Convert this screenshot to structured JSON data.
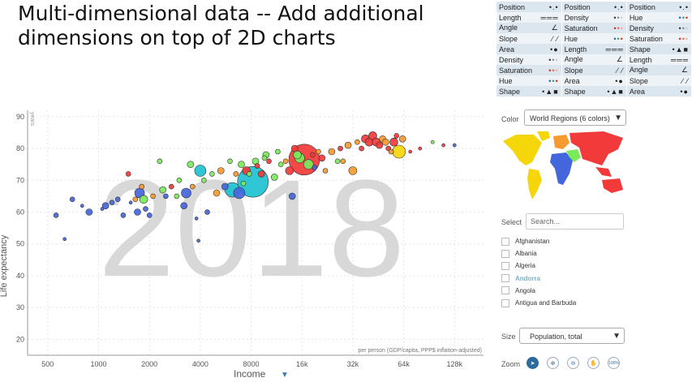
{
  "slide": {
    "title_line1": "Multi-dimensional data -- Add additional",
    "title_line2": "dimensions on top of 2D charts"
  },
  "encoding_table": {
    "rows": [
      [
        {
          "label": "Position",
          "glyph": "•.•"
        },
        {
          "label": "Position",
          "glyph": "•.•"
        },
        {
          "label": "Position",
          "glyph": "•.•"
        }
      ],
      [
        {
          "label": "Length",
          "glyph": "═══"
        },
        {
          "label": "Density",
          "glyph": "•••",
          "colors": [
            "#333",
            "#888",
            "#ccc"
          ]
        },
        {
          "label": "Hue",
          "glyph": "•••",
          "colors": [
            "#2255cc",
            "#22aa44",
            "#dd2222"
          ]
        }
      ],
      [
        {
          "label": "Angle",
          "glyph": "∠"
        },
        {
          "label": "Saturation",
          "glyph": "•••",
          "colors": [
            "#dd2222",
            "#ee6655",
            "#f4aaaa"
          ]
        },
        {
          "label": "Density",
          "glyph": "•••",
          "colors": [
            "#333",
            "#888",
            "#ccc"
          ]
        }
      ],
      [
        {
          "label": "Slope",
          "glyph": "⁄ ⁄"
        },
        {
          "label": "Hue",
          "glyph": "•••",
          "colors": [
            "#2255cc",
            "#22aa44",
            "#dd2222"
          ]
        },
        {
          "label": "Saturation",
          "glyph": "•••",
          "colors": [
            "#dd2222",
            "#ee6655",
            "#f4aaaa"
          ]
        }
      ],
      [
        {
          "label": "Area",
          "glyph": "•●"
        },
        {
          "label": "Length",
          "glyph": "═══"
        },
        {
          "label": "Shape",
          "glyph": "•▲■"
        }
      ],
      [
        {
          "label": "Density",
          "glyph": "•••",
          "colors": [
            "#333",
            "#888",
            "#ccc"
          ]
        },
        {
          "label": "Angle",
          "glyph": "∠"
        },
        {
          "label": "Length",
          "glyph": "═══"
        }
      ],
      [
        {
          "label": "Saturation",
          "glyph": "•••",
          "colors": [
            "#dd2222",
            "#ee6655",
            "#f4aaaa"
          ]
        },
        {
          "label": "Slope",
          "glyph": "⁄ ⁄"
        },
        {
          "label": "Angle",
          "glyph": "∠"
        }
      ],
      [
        {
          "label": "Hue",
          "glyph": "•••",
          "colors": [
            "#2255cc",
            "#22aa44",
            "#dd2222"
          ]
        },
        {
          "label": "Area",
          "glyph": "•●"
        },
        {
          "label": "Slope",
          "glyph": "⁄ ⁄"
        }
      ],
      [
        {
          "label": "Shape",
          "glyph": "•▲■"
        },
        {
          "label": "Shape",
          "glyph": "•▲■"
        },
        {
          "label": "Area",
          "glyph": "•●"
        }
      ]
    ]
  },
  "controls": {
    "color_label": "Color",
    "color_value": "World Regions (6 colors)",
    "select_label": "Select",
    "search_placeholder": "Search...",
    "countries": [
      "Afghanistan",
      "Albania",
      "Algeria",
      "Andorra",
      "Angola",
      "Antigua and Barbuda"
    ],
    "size_label": "Size",
    "size_value": "Population, total",
    "zoom_label": "Zoom",
    "zoom_100": "100%"
  },
  "region_colors": {
    "africa": "#1fc1d1",
    "americas": "#7bea5a",
    "asia": "#f23a3a",
    "europe": "#f5d60a",
    "blue": "#4466dd",
    "orange": "#f79a2f"
  },
  "chart_data": {
    "type": "scatter",
    "year_watermark": "2018",
    "xlabel": "Income",
    "x_unit_note": "per person (GDP/capita, PPP$ inflation-adjusted)",
    "ylabel": "Life expectancy",
    "y_unit": "years",
    "x_scale": "log",
    "xlim": [
      380,
      190000
    ],
    "ylim": [
      15,
      92
    ],
    "x_ticks": [
      500,
      1000,
      2000,
      4000,
      8000,
      16000,
      32000,
      64000,
      128000
    ],
    "x_tick_labels": [
      "500",
      "1000",
      "2000",
      "4000",
      "8000",
      "16k",
      "32k",
      "64k",
      "128k"
    ],
    "y_ticks": [
      20,
      30,
      40,
      50,
      60,
      70,
      80,
      90
    ],
    "points": [
      {
        "x": 560,
        "y": 59,
        "r": 3,
        "c": "blue"
      },
      {
        "x": 630,
        "y": 51.5,
        "r": 2,
        "c": "blue"
      },
      {
        "x": 700,
        "y": 64,
        "r": 3,
        "c": "blue"
      },
      {
        "x": 800,
        "y": 62,
        "r": 2,
        "c": "blue"
      },
      {
        "x": 880,
        "y": 60,
        "r": 4,
        "c": "blue"
      },
      {
        "x": 1050,
        "y": 61,
        "r": 2,
        "c": "blue"
      },
      {
        "x": 1100,
        "y": 62,
        "r": 4,
        "c": "blue"
      },
      {
        "x": 1200,
        "y": 63,
        "r": 3,
        "c": "blue"
      },
      {
        "x": 1300,
        "y": 64,
        "r": 3,
        "c": "blue"
      },
      {
        "x": 1400,
        "y": 59,
        "r": 3,
        "c": "blue"
      },
      {
        "x": 1500,
        "y": 72,
        "r": 3,
        "c": "asia"
      },
      {
        "x": 1550,
        "y": 63,
        "r": 2,
        "c": "blue"
      },
      {
        "x": 1650,
        "y": 64,
        "r": 3,
        "c": "orange"
      },
      {
        "x": 1700,
        "y": 60,
        "r": 4,
        "c": "blue"
      },
      {
        "x": 1750,
        "y": 66,
        "r": 6,
        "c": "blue"
      },
      {
        "x": 1800,
        "y": 68,
        "r": 3,
        "c": "orange"
      },
      {
        "x": 1850,
        "y": 64,
        "r": 5,
        "c": "americas"
      },
      {
        "x": 1900,
        "y": 61,
        "r": 3,
        "c": "blue"
      },
      {
        "x": 2000,
        "y": 59,
        "r": 3,
        "c": "blue"
      },
      {
        "x": 2100,
        "y": 65,
        "r": 3,
        "c": "orange"
      },
      {
        "x": 2300,
        "y": 76,
        "r": 3,
        "c": "americas"
      },
      {
        "x": 2400,
        "y": 67,
        "r": 4,
        "c": "americas"
      },
      {
        "x": 2500,
        "y": 65,
        "r": 3,
        "c": "blue"
      },
      {
        "x": 2700,
        "y": 68,
        "r": 3,
        "c": "asia"
      },
      {
        "x": 2900,
        "y": 65,
        "r": 3,
        "c": "americas"
      },
      {
        "x": 3000,
        "y": 70,
        "r": 3,
        "c": "americas"
      },
      {
        "x": 3200,
        "y": 62,
        "r": 4,
        "c": "blue"
      },
      {
        "x": 3300,
        "y": 66,
        "r": 6,
        "c": "blue"
      },
      {
        "x": 3500,
        "y": 75,
        "r": 4,
        "c": "americas"
      },
      {
        "x": 3600,
        "y": 68,
        "r": 3,
        "c": "orange"
      },
      {
        "x": 3800,
        "y": 58,
        "r": 2,
        "c": "blue"
      },
      {
        "x": 3900,
        "y": 51,
        "r": 2,
        "c": "blue"
      },
      {
        "x": 4000,
        "y": 73,
        "r": 7,
        "c": "africa"
      },
      {
        "x": 4200,
        "y": 70,
        "r": 3,
        "c": "americas"
      },
      {
        "x": 4400,
        "y": 60,
        "r": 3,
        "c": "blue"
      },
      {
        "x": 4700,
        "y": 72,
        "r": 3,
        "c": "americas"
      },
      {
        "x": 5000,
        "y": 66,
        "r": 4,
        "c": "orange"
      },
      {
        "x": 5300,
        "y": 73,
        "r": 4,
        "c": "orange"
      },
      {
        "x": 5600,
        "y": 68,
        "r": 4,
        "c": "blue"
      },
      {
        "x": 6000,
        "y": 76,
        "r": 3,
        "c": "americas"
      },
      {
        "x": 6200,
        "y": 67,
        "r": 9,
        "c": "africa"
      },
      {
        "x": 6500,
        "y": 72,
        "r": 3,
        "c": "orange"
      },
      {
        "x": 6800,
        "y": 66,
        "r": 7,
        "c": "blue"
      },
      {
        "x": 7000,
        "y": 75,
        "r": 4,
        "c": "americas"
      },
      {
        "x": 7200,
        "y": 69,
        "r": 3,
        "c": "americas"
      },
      {
        "x": 7500,
        "y": 73,
        "r": 5,
        "c": "asia"
      },
      {
        "x": 7800,
        "y": 72,
        "r": 3,
        "c": "americas"
      },
      {
        "x": 8200,
        "y": 69.5,
        "r": 19,
        "c": "africa"
      },
      {
        "x": 8500,
        "y": 76,
        "r": 4,
        "c": "americas"
      },
      {
        "x": 8700,
        "y": 74.5,
        "r": 3,
        "c": "asia"
      },
      {
        "x": 9200,
        "y": 72,
        "r": 4,
        "c": "asia"
      },
      {
        "x": 9600,
        "y": 77,
        "r": 3,
        "c": "americas"
      },
      {
        "x": 9800,
        "y": 78,
        "r": 4,
        "c": "americas"
      },
      {
        "x": 10200,
        "y": 76,
        "r": 3,
        "c": "asia"
      },
      {
        "x": 11000,
        "y": 71,
        "r": 4,
        "c": "americas"
      },
      {
        "x": 11500,
        "y": 79,
        "r": 3,
        "c": "americas"
      },
      {
        "x": 12000,
        "y": 75,
        "r": 3,
        "c": "americas"
      },
      {
        "x": 12800,
        "y": 76,
        "r": 3,
        "c": "orange"
      },
      {
        "x": 13500,
        "y": 73,
        "r": 5,
        "c": "asia"
      },
      {
        "x": 14000,
        "y": 65,
        "r": 4,
        "c": "blue"
      },
      {
        "x": 14500,
        "y": 80,
        "r": 4,
        "c": "asia"
      },
      {
        "x": 15000,
        "y": 78,
        "r": 5,
        "c": "americas"
      },
      {
        "x": 15500,
        "y": 77,
        "r": 6,
        "c": "americas"
      },
      {
        "x": 16500,
        "y": 76.5,
        "r": 19,
        "c": "asia"
      },
      {
        "x": 17500,
        "y": 75,
        "r": 6,
        "c": "americas"
      },
      {
        "x": 18500,
        "y": 78,
        "r": 3,
        "c": "asia"
      },
      {
        "x": 19000,
        "y": 74,
        "r": 3,
        "c": "blue"
      },
      {
        "x": 20000,
        "y": 79,
        "r": 3,
        "c": "orange"
      },
      {
        "x": 21000,
        "y": 77,
        "r": 4,
        "c": "asia"
      },
      {
        "x": 22000,
        "y": 73,
        "r": 3,
        "c": "orange"
      },
      {
        "x": 24000,
        "y": 79,
        "r": 4,
        "c": "orange"
      },
      {
        "x": 26000,
        "y": 76,
        "r": 3,
        "c": "americas"
      },
      {
        "x": 27000,
        "y": 80,
        "r": 3,
        "c": "asia"
      },
      {
        "x": 28000,
        "y": 76,
        "r": 3,
        "c": "orange"
      },
      {
        "x": 30000,
        "y": 81,
        "r": 4,
        "c": "orange"
      },
      {
        "x": 32000,
        "y": 73,
        "r": 5,
        "c": "orange"
      },
      {
        "x": 34000,
        "y": 82,
        "r": 3,
        "c": "orange"
      },
      {
        "x": 36000,
        "y": 80,
        "r": 3,
        "c": "asia"
      },
      {
        "x": 38000,
        "y": 83,
        "r": 5,
        "c": "asia"
      },
      {
        "x": 40000,
        "y": 82,
        "r": 5,
        "c": "asia"
      },
      {
        "x": 42000,
        "y": 84,
        "r": 5,
        "c": "asia"
      },
      {
        "x": 44000,
        "y": 82,
        "r": 5,
        "c": "asia"
      },
      {
        "x": 46000,
        "y": 81,
        "r": 4,
        "c": "asia"
      },
      {
        "x": 48000,
        "y": 83,
        "r": 4,
        "c": "orange"
      },
      {
        "x": 50000,
        "y": 82,
        "r": 4,
        "c": "orange"
      },
      {
        "x": 52000,
        "y": 80,
        "r": 3,
        "c": "asia"
      },
      {
        "x": 54000,
        "y": 79,
        "r": 3,
        "c": "orange"
      },
      {
        "x": 56000,
        "y": 82,
        "r": 5,
        "c": "asia"
      },
      {
        "x": 58000,
        "y": 84,
        "r": 3,
        "c": "asia"
      },
      {
        "x": 60000,
        "y": 79,
        "r": 8,
        "c": "europe"
      },
      {
        "x": 63000,
        "y": 83,
        "r": 4,
        "c": "orange"
      },
      {
        "x": 70000,
        "y": 79,
        "r": 2,
        "c": "asia"
      },
      {
        "x": 80000,
        "y": 80,
        "r": 2,
        "c": "asia"
      },
      {
        "x": 95000,
        "y": 82,
        "r": 2,
        "c": "americas"
      },
      {
        "x": 110000,
        "y": 81,
        "r": 2,
        "c": "asia"
      },
      {
        "x": 128000,
        "y": 81,
        "r": 2,
        "c": "blue"
      }
    ]
  }
}
